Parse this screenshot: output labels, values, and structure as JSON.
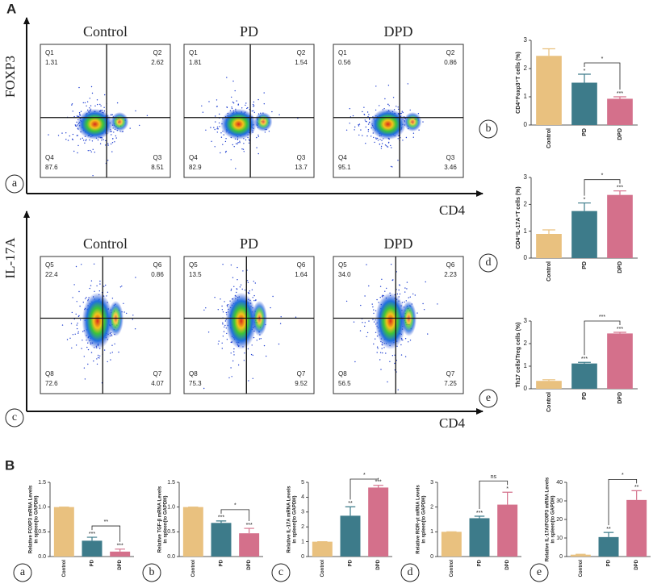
{
  "panel_letters": [
    "A",
    "B"
  ],
  "sub_letters_A": [
    "a",
    "b",
    "c",
    "d",
    "e"
  ],
  "sub_letters_B": [
    "a",
    "b",
    "c",
    "d",
    "e"
  ],
  "flow_panels": [
    {
      "y_label": "FOXP3",
      "x_label": "CD4",
      "plots": [
        {
          "title": "Control",
          "quadrants": [
            {
              "name": "Q1",
              "value": "1.31"
            },
            {
              "name": "Q2",
              "value": "2.62"
            },
            {
              "name": "Q4",
              "value": "87.6"
            },
            {
              "name": "Q3",
              "value": "8.51"
            }
          ]
        },
        {
          "title": "PD",
          "quadrants": [
            {
              "name": "Q1",
              "value": "1.81"
            },
            {
              "name": "Q2",
              "value": "1.54"
            },
            {
              "name": "Q4",
              "value": "82.9"
            },
            {
              "name": "Q3",
              "value": "13.7"
            }
          ]
        },
        {
          "title": "DPD",
          "quadrants": [
            {
              "name": "Q1",
              "value": "0.56"
            },
            {
              "name": "Q2",
              "value": "0.86"
            },
            {
              "name": "Q4",
              "value": "95.1"
            },
            {
              "name": "Q3",
              "value": "3.46"
            }
          ]
        }
      ]
    },
    {
      "y_label": "IL-17A",
      "x_label": "CD4",
      "plots": [
        {
          "title": "Control",
          "quadrants": [
            {
              "name": "Q5",
              "value": "22.4"
            },
            {
              "name": "Q6",
              "value": "0.86"
            },
            {
              "name": "Q8",
              "value": "72.6"
            },
            {
              "name": "Q7",
              "value": "4.07"
            }
          ]
        },
        {
          "title": "PD",
          "quadrants": [
            {
              "name": "Q5",
              "value": "13.5"
            },
            {
              "name": "Q6",
              "value": "1.64"
            },
            {
              "name": "Q8",
              "value": "75.3"
            },
            {
              "name": "Q7",
              "value": "9.52"
            }
          ]
        },
        {
          "title": "DPD",
          "quadrants": [
            {
              "name": "Q5",
              "value": "34.0"
            },
            {
              "name": "Q6",
              "value": "2.23"
            },
            {
              "name": "Q8",
              "value": "56.5"
            },
            {
              "name": "Q7",
              "value": "7.25"
            }
          ]
        }
      ]
    }
  ],
  "chart_data": [
    {
      "type": "bar",
      "ylabel": [
        "CD4⁺Foxp3⁺T cells (%)"
      ],
      "categories": [
        "Control",
        "PD",
        "DPD"
      ],
      "values": [
        2.45,
        1.5,
        0.93
      ],
      "errors": [
        0.25,
        0.3,
        0.07
      ],
      "colors": [
        "#e9c17f",
        "#3d7b8a",
        "#d4708b"
      ],
      "sig_labels": [
        null,
        "*",
        "***"
      ],
      "bracket_label": "*",
      "ylim": [
        0,
        3
      ],
      "yticks": [
        0,
        1,
        2,
        3
      ]
    },
    {
      "type": "bar",
      "ylabel": [
        "CD4⁺IL-17A⁺T cells (%)"
      ],
      "categories": [
        "Control",
        "PD",
        "DPD"
      ],
      "values": [
        0.9,
        1.75,
        2.35
      ],
      "errors": [
        0.15,
        0.3,
        0.15
      ],
      "colors": [
        "#e9c17f",
        "#3d7b8a",
        "#d4708b"
      ],
      "sig_labels": [
        null,
        "*",
        "***"
      ],
      "bracket_label": "*",
      "ylim": [
        0,
        3
      ],
      "yticks": [
        0,
        1,
        2,
        3
      ]
    },
    {
      "type": "bar",
      "ylabel": [
        "Th17 cells/Treg cells (%)"
      ],
      "categories": [
        "Control",
        "PD",
        "DPD"
      ],
      "values": [
        0.35,
        1.12,
        2.45
      ],
      "errors": [
        0.05,
        0.05,
        0.05
      ],
      "colors": [
        "#e9c17f",
        "#3d7b8a",
        "#d4708b"
      ],
      "sig_labels": [
        null,
        "***",
        "***"
      ],
      "bracket_label": "***",
      "ylim": [
        0,
        3
      ],
      "yticks": [
        0,
        1,
        2,
        3
      ]
    },
    {
      "type": "bar",
      "ylabel": [
        "Relative FOXP3 mRNA Levels",
        "in spleen(to GAPDH)"
      ],
      "categories": [
        "Control",
        "PD",
        "DPD"
      ],
      "values": [
        1.0,
        0.32,
        0.1
      ],
      "errors": [
        0,
        0.07,
        0.05
      ],
      "colors": [
        "#e9c17f",
        "#3d7b8a",
        "#d4708b"
      ],
      "sig_labels": [
        null,
        "***",
        "***"
      ],
      "bracket_label": "**",
      "ylim": [
        0,
        1.5
      ],
      "yticks": [
        {
          "value": 0,
          "label": "0.0"
        },
        0.5,
        {
          "value": 1,
          "label": "1.0"
        },
        1.5
      ]
    },
    {
      "type": "bar",
      "ylabel": [
        "Relative TGF-β mRNA Levels",
        "in spleen(to GAPDH)"
      ],
      "categories": [
        "Control",
        "PD",
        "DPD"
      ],
      "values": [
        1.0,
        0.68,
        0.47
      ],
      "errors": [
        0,
        0.04,
        0.1
      ],
      "colors": [
        "#e9c17f",
        "#3d7b8a",
        "#d4708b"
      ],
      "sig_labels": [
        null,
        "***",
        "***"
      ],
      "bracket_label": "*",
      "ylim": [
        0,
        1.5
      ],
      "yticks": [
        {
          "value": 0,
          "label": "0.0"
        },
        0.5,
        {
          "value": 1,
          "label": "1.0"
        },
        1.5
      ]
    },
    {
      "type": "bar",
      "ylabel": [
        "Relative IL-17A mRNA Levels",
        "in spleen(to GAPDH)"
      ],
      "categories": [
        "Control",
        "PD",
        "DPD"
      ],
      "values": [
        1,
        2.75,
        4.65
      ],
      "errors": [
        0,
        0.6,
        0.15
      ],
      "colors": [
        "#e9c17f",
        "#3d7b8a",
        "#d4708b"
      ],
      "sig_labels": [
        null,
        "**",
        "***"
      ],
      "bracket_label": "*",
      "ylim": [
        0,
        5
      ],
      "yticks": [
        0,
        1,
        2,
        3,
        4,
        5
      ]
    },
    {
      "type": "bar",
      "ylabel": [
        "Relative ROR-γt mRNA Levels",
        "in spleen(to GAPDH)"
      ],
      "categories": [
        "Control",
        "PD",
        "DPD"
      ],
      "values": [
        1,
        1.55,
        2.1
      ],
      "errors": [
        0,
        0.08,
        0.5
      ],
      "colors": [
        "#e9c17f",
        "#3d7b8a",
        "#d4708b"
      ],
      "sig_labels": [
        null,
        "***",
        "*"
      ],
      "bracket_label": "ns",
      "ylim": [
        0,
        3
      ],
      "yticks": [
        0,
        1,
        2,
        3
      ]
    },
    {
      "type": "bar",
      "ylabel": [
        "Relative IL-17A/FOXP3 mRNA Levels",
        "in spleen(to GAPDH)"
      ],
      "categories": [
        "Control",
        "PD",
        "DPD"
      ],
      "values": [
        1,
        10.5,
        30.5
      ],
      "errors": [
        0.2,
        2.5,
        5
      ],
      "colors": [
        "#e9c17f",
        "#3d7b8a",
        "#d4708b"
      ],
      "sig_labels": [
        null,
        "**",
        "**"
      ],
      "bracket_label": "*",
      "ylim": [
        0,
        40
      ],
      "yticks": [
        0,
        10,
        20,
        30,
        40
      ]
    }
  ]
}
